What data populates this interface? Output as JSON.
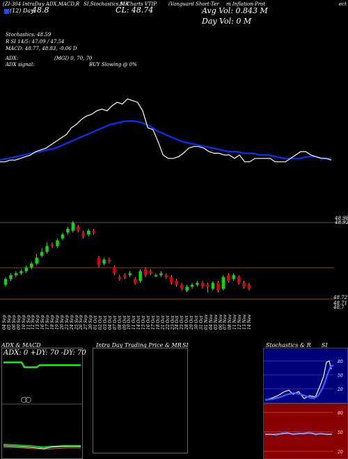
{
  "header": {
    "line1_left": "(ZI-304 IntraDay ADX,MACD,R",
    "line1_mid": "SI,Stochastics,MR",
    "line1_mid2": "SI Charts VTIP",
    "line1_right": "(Vanguard Short-Ter",
    "line1_right2": "m Inflation-Prot",
    "line1_right3": "ect",
    "day_label": "(12) Day",
    "day_value": "48.8",
    "close_label": "CL: 48.74",
    "avg_vol": "Avg Vol: 0.843 M",
    "day_vol": "Day Vol: 0   M"
  },
  "indicators": {
    "stoch": "Stochastics: 48.59",
    "rsi": "R          SI 14/5: 47.09 / 47.54",
    "macd": "MACD: 48.77, 48.83, -0.06  D",
    "adx": "ADX:",
    "adx_mid": "(MGI) 0,  70,  70",
    "adx_signal": "ADX  signal:",
    "adx_signal_mid": "BUY Slowing @ 0%"
  },
  "price_labels": {
    "top_right_a": "48.98",
    "top_right_b": "48.92",
    "low_right_a": "48.72",
    "low_right_b": "48.71",
    "low_right_c": "48.7"
  },
  "dates": [
    "04 Sep",
    "05 Sep",
    "06 Sep",
    "09 Sep",
    "10 Sep",
    "11 Sep",
    "12 Sep",
    "13 Sep",
    "16 Sep",
    "17 Sep",
    "18 Sep",
    "19 Sep",
    "20 Sep",
    "23 Sep",
    "24 Sep",
    "25 Sep",
    "26 Sep",
    "27 Sep",
    "30 Sep",
    "01 Oct",
    "02 Oct",
    "03 Oct",
    "04 Oct",
    "07 Oct",
    "08 Oct",
    "09 Oct",
    "10 Oct",
    "11 Oct",
    "14 Oct",
    "15 Oct",
    "16 Oct",
    "17 Oct",
    "18 Oct",
    "21 Oct",
    "22 Oct",
    "23 Oct",
    "24 Oct",
    "25 Oct",
    "28 Oct",
    "29 Oct",
    "30 Oct",
    "31 Oct",
    "01 Nov",
    "04 Nov",
    "05 Nov",
    "06 Nov",
    "07 Nov",
    "08 Nov",
    "11 Nov",
    "12 Nov",
    "13 Nov",
    "14 Nov"
  ],
  "panels": {
    "adx_title": "ADX  & MACD",
    "adx_readout": "ADX: 0   +DY: 70   -DY: 70",
    "intraday_title": "Intra  Day Trading Price  & MR",
    "intraday_title2": "SI",
    "stoch_title": "Stochastics & R",
    "stoch_title2": "SI",
    "stoch_axis": [
      "80",
      "50",
      "20"
    ],
    "rsi_axis": [
      "80",
      "50",
      "20"
    ]
  },
  "chart_data": {
    "type": "candlestick",
    "ylim": [
      48.55,
      49.1
    ],
    "up_color": "#00e000",
    "down_color": "#e00000",
    "ma_color": "#0033ff",
    "candles": [
      {
        "o": 48.66,
        "c": 48.69,
        "h": 48.7,
        "l": 48.65
      },
      {
        "o": 48.69,
        "c": 48.71,
        "h": 48.72,
        "l": 48.68
      },
      {
        "o": 48.71,
        "c": 48.72,
        "h": 48.73,
        "l": 48.7
      },
      {
        "o": 48.72,
        "c": 48.73,
        "h": 48.74,
        "l": 48.71
      },
      {
        "o": 48.73,
        "c": 48.75,
        "h": 48.76,
        "l": 48.72
      },
      {
        "o": 48.75,
        "c": 48.77,
        "h": 48.78,
        "l": 48.74
      },
      {
        "o": 48.77,
        "c": 48.8,
        "h": 48.82,
        "l": 48.76
      },
      {
        "o": 48.81,
        "c": 48.83,
        "h": 48.85,
        "l": 48.8
      },
      {
        "o": 48.83,
        "c": 48.86,
        "h": 48.88,
        "l": 48.82
      },
      {
        "o": 48.87,
        "c": 48.86,
        "h": 48.88,
        "l": 48.85
      },
      {
        "o": 48.86,
        "c": 48.89,
        "h": 48.9,
        "l": 48.85
      },
      {
        "o": 48.9,
        "c": 48.92,
        "h": 48.93,
        "l": 48.89
      },
      {
        "o": 48.93,
        "c": 48.95,
        "h": 48.96,
        "l": 48.92
      },
      {
        "o": 48.94,
        "c": 48.98,
        "h": 48.99,
        "l": 48.93
      },
      {
        "o": 48.96,
        "c": 48.94,
        "h": 48.97,
        "l": 48.93
      },
      {
        "o": 48.93,
        "c": 48.91,
        "h": 48.94,
        "l": 48.9
      },
      {
        "o": 48.92,
        "c": 48.94,
        "h": 48.95,
        "l": 48.91
      },
      {
        "o": 48.94,
        "c": 48.93,
        "h": 48.95,
        "l": 48.92
      },
      {
        "o": 48.8,
        "c": 48.76,
        "h": 48.81,
        "l": 48.75
      },
      {
        "o": 48.77,
        "c": 48.79,
        "h": 48.8,
        "l": 48.76
      },
      {
        "o": 48.79,
        "c": 48.78,
        "h": 48.8,
        "l": 48.77
      },
      {
        "o": 48.75,
        "c": 48.72,
        "h": 48.76,
        "l": 48.71
      },
      {
        "o": 48.7,
        "c": 48.69,
        "h": 48.71,
        "l": 48.68
      },
      {
        "o": 48.71,
        "c": 48.7,
        "h": 48.72,
        "l": 48.69
      },
      {
        "o": 48.71,
        "c": 48.72,
        "h": 48.73,
        "l": 48.7
      },
      {
        "o": 48.69,
        "c": 48.67,
        "h": 48.7,
        "l": 48.66
      },
      {
        "o": 48.68,
        "c": 48.73,
        "h": 48.74,
        "l": 48.67
      },
      {
        "o": 48.74,
        "c": 48.71,
        "h": 48.75,
        "l": 48.7
      },
      {
        "o": 48.73,
        "c": 48.72,
        "h": 48.74,
        "l": 48.71
      },
      {
        "o": 48.71,
        "c": 48.71,
        "h": 48.72,
        "l": 48.7
      },
      {
        "o": 48.71,
        "c": 48.72,
        "h": 48.73,
        "l": 48.7
      },
      {
        "o": 48.71,
        "c": 48.7,
        "h": 48.72,
        "l": 48.69
      },
      {
        "o": 48.7,
        "c": 48.67,
        "h": 48.71,
        "l": 48.66
      },
      {
        "o": 48.68,
        "c": 48.66,
        "h": 48.69,
        "l": 48.65
      },
      {
        "o": 48.66,
        "c": 48.64,
        "h": 48.67,
        "l": 48.63
      },
      {
        "o": 48.63,
        "c": 48.65,
        "h": 48.66,
        "l": 48.62
      },
      {
        "o": 48.65,
        "c": 48.66,
        "h": 48.67,
        "l": 48.64
      },
      {
        "o": 48.66,
        "c": 48.67,
        "h": 48.68,
        "l": 48.65
      },
      {
        "o": 48.67,
        "c": 48.65,
        "h": 48.68,
        "l": 48.64
      },
      {
        "o": 48.66,
        "c": 48.65,
        "h": 48.67,
        "l": 48.62
      },
      {
        "o": 48.64,
        "c": 48.67,
        "h": 48.68,
        "l": 48.63
      },
      {
        "o": 48.67,
        "c": 48.63,
        "h": 48.68,
        "l": 48.62
      },
      {
        "o": 48.64,
        "c": 48.7,
        "h": 48.71,
        "l": 48.63
      },
      {
        "o": 48.71,
        "c": 48.68,
        "h": 48.72,
        "l": 48.67
      },
      {
        "o": 48.69,
        "c": 48.71,
        "h": 48.72,
        "l": 48.68
      },
      {
        "o": 48.7,
        "c": 48.67,
        "h": 48.71,
        "l": 48.66
      },
      {
        "o": 48.67,
        "c": 48.65,
        "h": 48.68,
        "l": 48.64
      },
      {
        "o": 48.66,
        "c": 48.64,
        "h": 48.67,
        "l": 48.63
      }
    ],
    "price_line": [
      48.58,
      48.58,
      48.59,
      48.59,
      48.6,
      48.61,
      48.62,
      48.64,
      48.65,
      48.66,
      48.68,
      48.7,
      48.72,
      48.74,
      48.78,
      48.8,
      48.83,
      48.85,
      48.86,
      48.88,
      48.89,
      48.88,
      48.91,
      48.93,
      48.92,
      48.95,
      48.94,
      48.93,
      48.88,
      48.78,
      48.77,
      48.7,
      48.62,
      48.6,
      48.6,
      48.61,
      48.63,
      48.66,
      48.67,
      48.67,
      48.66,
      48.64,
      48.63,
      48.63,
      48.62,
      48.62,
      48.6,
      48.62,
      48.58,
      48.58,
      48.6,
      48.6,
      48.6,
      48.6,
      48.58,
      48.58,
      48.58,
      48.6,
      48.62,
      48.64,
      48.64,
      48.62,
      48.61,
      48.6,
      48.6,
      48.59
    ],
    "ma_line": [
      48.59,
      48.6,
      48.61,
      48.62,
      48.63,
      48.64,
      48.65,
      48.66,
      48.68,
      48.7,
      48.72,
      48.74,
      48.76,
      48.78,
      48.8,
      48.81,
      48.82,
      48.82,
      48.81,
      48.79,
      48.76,
      48.74,
      48.72,
      48.7,
      48.69,
      48.68,
      48.67,
      48.66,
      48.65,
      48.64,
      48.64,
      48.63,
      48.63,
      48.62,
      48.62,
      48.61,
      48.6,
      48.6,
      48.6,
      48.61,
      48.61,
      48.6,
      48.6
    ]
  }
}
